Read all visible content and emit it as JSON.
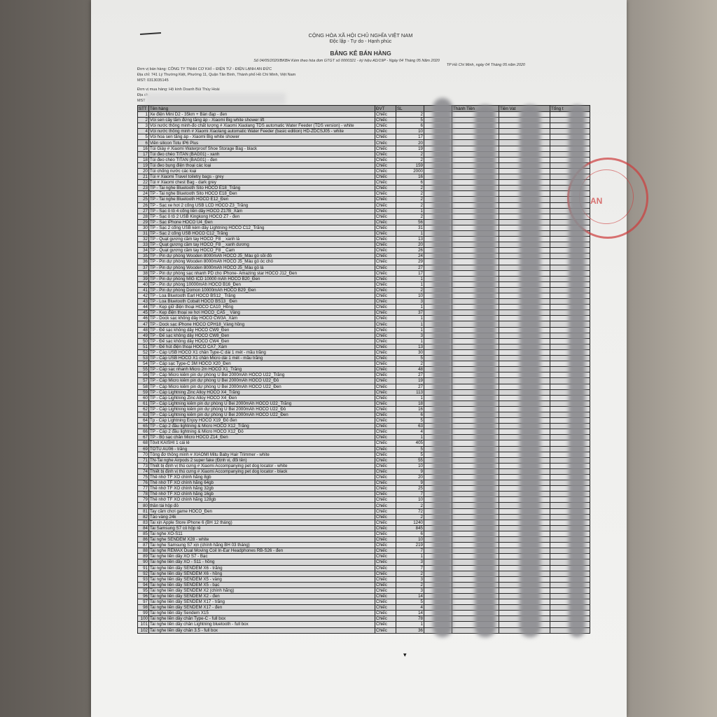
{
  "header": {
    "national_title": "CỘNG HÒA XÃ HỘI CHỦ NGHĨA VIỆT NAM",
    "motto": "Độc lập - Tự do - Hạnh phúc",
    "doc_title": "BẢNG KÊ BÁN HÀNG",
    "doc_ref": "Số  04/05/2020/BKBH Kèm theo hóa đơn GTGT số 0000321 - ký hiệu AD/19P -  Ngày 04 Tháng 05 Năm 2020",
    "place_date": "TP Hồ Chí Minh, ngày 04 Tháng 05 năm 2020"
  },
  "seller": {
    "name": "Đơn vị bán hàng: CÔNG TY TNHH CƠ KHÍ – ĐIỆN TỬ - ĐIỆN LẠNH AN ĐỨC",
    "address": "Địa chỉ: 741 Lý Thường Kiệt, Phường 11, Quận Tân Bình, Thành phố Hồ Chí Minh, Việt Nam",
    "tax_id": "MST: 0313035145"
  },
  "buyer": {
    "name": "Đơn vị mua hàng: Hộ kinh Doanh Bùi Thùy Hoài",
    "address_label": "Địa ch",
    "tax_label": "MST"
  },
  "stamp_text": "AN",
  "table": {
    "columns": [
      "STT",
      "Tên hàng",
      "ĐVT",
      "SL",
      "",
      "Thành Tiền",
      "Tiền Vat",
      "Tổng t"
    ],
    "rows": [
      [
        "1",
        "Xe điện Mini D2 - 35km + Bàn đạp - đen",
        "Chiếc",
        "2"
      ],
      [
        "2",
        "Vòi sen cây tắm đứng tăng áp - Xiaomi Big white shower lift",
        "Chiếc",
        "5"
      ],
      [
        "3",
        "Vòi nước thông minh-đo chất lượng # Xiaomi Xiaolang TDS automatic Water Feeder (TDS version) - white",
        "Chiếc",
        "6"
      ],
      [
        "4",
        "Vòi nước thông minh # Xiaomi Xiaolang automatic Water Feeder  (basic edition)  HD-ZDCSJ05 - white",
        "Chiếc",
        "10"
      ],
      [
        "5",
        "Vòi hoa sen tăng áp - Xiaomi Big white shower",
        "Chiếc",
        "17"
      ],
      [
        "6",
        "Viền silicon Totu IP6 Plus",
        "Chiếc",
        "20"
      ],
      [
        "16",
        "Túi Giày # Xiaomi Waterproof Shoe Storage Bag - black",
        "Chiếc",
        "19"
      ],
      [
        "17",
        "Túi đeo chéo TITAN (BAG01) - xanh",
        "Chiếc",
        "2"
      ],
      [
        "18",
        "Túi đeo chéo TITAN (BAG01) - đen",
        "Chiếc",
        "2"
      ],
      [
        "19",
        "Túi đeo bụng điện thoại các loại",
        "Chiếc",
        "159"
      ],
      [
        "20",
        "Túi chống nước các loại",
        "Chiếc",
        "2000"
      ],
      [
        "21",
        "Túi # Xiaomi Travel toiletry bags - grey",
        "Chiếc",
        "16"
      ],
      [
        "22",
        "Túi # Xiaomi chest Bag - dark grey",
        "Chiếc",
        "6"
      ],
      [
        "23",
        "TP - Tai nghe Bluetooth Sito HOCO E18_Trắng",
        "Chiếc",
        "2"
      ],
      [
        "24",
        "TP - Tai nghe Bluetooth Sito HOCO E18_Đen",
        "Chiếc",
        "2"
      ],
      [
        "25",
        "TP - Tai nghe Bluetooth HOCO E12_Đen",
        "Chiếc",
        "2"
      ],
      [
        "26",
        "TP - Sạc xe hơi 2 cổng  USB LCD HOCO Z3_Trắng",
        "Chiếc",
        "2"
      ],
      [
        "27",
        "TP - Sạc ô tô 4 cổng liền dây HOCO Z17B_Xám",
        "Chiếc",
        "1"
      ],
      [
        "28",
        "TP - Sạc ô tô 2 USB Kingkong HOCO Z7 - đen",
        "Chiếc",
        "2"
      ],
      [
        "29",
        "TP - Sạc iPhone HOCO U4_Đen",
        "Chiếc",
        "56"
      ],
      [
        "30",
        "TP - Sạc 2 cổng USB kèm dây Lightning HOCO C12_Trắng",
        "Chiếc",
        "31"
      ],
      [
        "31",
        "TP - Sạc 2 cổng USB HOCO C12_Trắng",
        "Chiếc",
        "1"
      ],
      [
        "32",
        "TP - Quạt gương cầm tay HOCO_F8 _ xanh lá",
        "Chiếc",
        "13"
      ],
      [
        "33",
        "TP - Quạt gương cầm tay HOCO_F8 _ xanh dương",
        "Chiếc",
        "20"
      ],
      [
        "34",
        "TP - Quạt gương cầm tay HOCO_F8 _ Cam",
        "Chiếc",
        "26"
      ],
      [
        "35",
        "TP - Pin dự phòng Wooden 8000mAh HOCO J5_Màu gỗ sồi đỏ",
        "Chiếc",
        "24"
      ],
      [
        "36",
        "TP - Pin dự phòng Wooden 8000mAh HOCO J5_Màu gỗ óc chó",
        "Chiếc",
        "29"
      ],
      [
        "37",
        "TP - Pin dự phòng Wooden 8000mAh HOCO J5_Màu gỗ lá",
        "Chiếc",
        "27"
      ],
      [
        "38",
        "TP - Pin dự phòng sạc nhanh PD cho iPhone- Amazing star HOCO  J12_Đen",
        "Chiếc",
        "17"
      ],
      [
        "39",
        "TP - Pin dự phòng MIG ICD 10000 mAh HOCO B20_Đen",
        "Chiếc",
        "1"
      ],
      [
        "40",
        "TP - Pin dự phòng 10000mAh HOCO B16_Đen",
        "Chiếc",
        "1"
      ],
      [
        "41",
        "TP - Pin dự phòng  Domon 10000mAh HOCO B29_Đen",
        "Chiếc",
        "2"
      ],
      [
        "42",
        "TP - Loa Bluetooth Earl HOCO BS12_ Trắng",
        "Chiếc",
        "10"
      ],
      [
        "43",
        "TP - Loa Bluetooth Cobalt HOCO BS13_ Đen",
        "Chiếc",
        "3"
      ],
      [
        "44",
        "TP - Kẹp giữ điện thoại HOCO CA10_Hồng",
        "Chiếc",
        "1"
      ],
      [
        "45",
        "TP - Kẹp điện thoại xe hơi HOCO_CA5 _ Vàng",
        "Chiếc",
        "37"
      ],
      [
        "46",
        "TP - Dock sạc không dây HOCO CW3A_Xám",
        "Chiếc",
        "1"
      ],
      [
        "47",
        "TP - Dock sạc iPhone HOCO CPH18_Vàng hồng",
        "Chiếc",
        "1"
      ],
      [
        "48",
        "TP - Đế sạc không dây HOCO CW9_Đen",
        "Chiếc",
        "1"
      ],
      [
        "49",
        "TP - Đế sạc không dây HOCO CW8_Đen",
        "Chiếc",
        "3"
      ],
      [
        "50",
        "TP - Đế sạc không dây HOCO CW4_Đen",
        "Chiếc",
        "1"
      ],
      [
        "51",
        "TP - Đế hút điện thoại HOCO CA7_Xám",
        "Chiếc",
        "13"
      ],
      [
        "52",
        "TP - Cáp USB HOCO X1 chân Type-C dài 1 mét - mầu trắng",
        "Chiếc",
        "30"
      ],
      [
        "53",
        "TP - Cáp USB HOCO X1 chân Micro dài 1 mét - mầu trắng",
        "Chiếc",
        "5"
      ],
      [
        "54",
        "TP - Cáp sạc Type-C 3M HOCO X20_Đen",
        "Chiếc",
        "2"
      ],
      [
        "55",
        "TP - Cáp sạc nhanh Micro 2m HOCO X1_Trắng",
        "Chiếc",
        "48"
      ],
      [
        "56",
        "TP - Cáp Micro kiêm pin dự phòng U Bei 2000mAh HOCO U22_Trắng",
        "Chiếc",
        "27"
      ],
      [
        "57",
        "TP - Cáp Micro kiêm pin dự phòng U Bei 2000mAh HOCO U22_Đỏ",
        "Chiếc",
        "19"
      ],
      [
        "58",
        "TP - Cáp Micro kiêm pin dự phòng U Bei 2000mAh HOCO U22_Đen",
        "Chiếc",
        "27"
      ],
      [
        "59",
        "TP - Cáp Lightning Zinc Alloy HOCO X4_Trắng",
        "Chiếc",
        "113"
      ],
      [
        "60",
        "TP - Cáp Lightning Zinc Alloy HOCO X4_Đen",
        "Chiếc",
        "1"
      ],
      [
        "61",
        "TP - Cáp Lightning kiêm pin dự phòng U Bei 2000mAh HOCO U22_Trắng",
        "Chiếc",
        "18"
      ],
      [
        "62",
        "TP - Cáp Lightning kiêm pin dự phòng U Bei 2000mAh HOCO U22_Đỏ",
        "Chiếc",
        "16"
      ],
      [
        "63",
        "TP - Cáp Lightning kiêm pin  dự phòng U Bei 2000mAh HOCO U22_Đen",
        "Chiếc",
        "6"
      ],
      [
        "64",
        "Tp - Cáp Lightning Enjoy HOCO X19_Đỏ đen",
        "Chiếc",
        "5"
      ],
      [
        "65",
        "TP - Cáp 2 đầu lightning & Micro HOCO X12_Trắng",
        "Chiếc",
        "63"
      ],
      [
        "66",
        "TP - Cáp 2 đầu lightning & Micro HOCO X12_Đỏ",
        "Chiếc",
        "4"
      ],
      [
        "67",
        "TP - Bộ sạc chân Micro HOCO Z14_Đen",
        "Chiếc",
        "1"
      ],
      [
        "68",
        "Tôvit KAISHI 1 cái lẻ",
        "Chiếc",
        "405"
      ],
      [
        "69",
        "TOTU AU06 - trắng",
        "Chiếc",
        "5"
      ],
      [
        "70",
        "Tông đơ thông minh # XIAOMI Mitu Baby Hair Trimmer - white",
        "Chiếc",
        "5"
      ],
      [
        "71",
        "TN-Tai nghe Airpods 2  super fake (Định vị, đổi tên)",
        "Chiếc",
        "55"
      ],
      [
        "73",
        "Thiết bị định vị thú cưng # Xiaomi Accompanying pet dog locator - white",
        "Chiếc",
        "10"
      ],
      [
        "74",
        "Thiết bị định vị thú cưng # Xiaomi Accompanying pet dog locator - black",
        "Chiếc",
        "9"
      ],
      [
        "75",
        "Thẻ nhớ TF XO chính hãng 8gb",
        "Chiếc",
        "20"
      ],
      [
        "76",
        "Thẻ nhớ TF XO chính hãng 64gb",
        "Chiếc",
        "9"
      ],
      [
        "77",
        "Thẻ nhớ TF XO chính hãng 32gb",
        "Chiếc",
        "25"
      ],
      [
        "78",
        "Thẻ nhớ TF XO chính hãng 16gb",
        "Chiếc",
        "7"
      ],
      [
        "79",
        "Thẻ nhớ TF XO chính hãng 128gb",
        "Chiếc",
        "10"
      ],
      [
        "80",
        "thần tài hộp đỏ",
        "Chiếc",
        "2"
      ],
      [
        "81",
        "Tay cầm chơi game HOCO_Đen",
        "Chiếc",
        "72"
      ],
      [
        "82",
        "Táo vàng 24k",
        "Chiếc",
        "2"
      ],
      [
        "83",
        "Tai xịn Apple Store iPhone 6 (BH 12  tháng)",
        "Chiếc",
        "1240"
      ],
      [
        "84",
        "Tai Samsung S7 có hộp rẻ",
        "Chiếc",
        "845"
      ],
      [
        "85",
        "Tai nghe XO-S11",
        "Chiếc",
        "6"
      ],
      [
        "86",
        "Tai nghe SENDEM X28 - white",
        "Chiếc",
        "10"
      ],
      [
        "87",
        "Tai nghe Samsung S7 xịn (chính hãng BH 03 tháng)",
        "Chiếc",
        "219"
      ],
      [
        "88",
        "Tai nghe REMAX Dual Moving Coil In-Ear Headphones RB-S26 - đen",
        "Chiếc",
        "7"
      ],
      [
        "89",
        "Tai nghe liền dây XO S7 - Bạc",
        "Chiếc",
        "1"
      ],
      [
        "90",
        "Tai nghe liền dây XO - S11 - hồng",
        "Chiếc",
        "3"
      ],
      [
        "91",
        "Tai nghe liền dây SENDEM X6 - trắng",
        "Chiếc",
        "7"
      ],
      [
        "92",
        "Tai nghe liền dây SENDEM X6 - hồng",
        "Chiếc",
        "2"
      ],
      [
        "93",
        "Tai nghe liền dây SENDEM X5 - vàng",
        "Chiếc",
        "3"
      ],
      [
        "94",
        "Tai nghe liền dây SENDEM X5 - bạc",
        "Chiếc",
        "2"
      ],
      [
        "95",
        "Tai nghe liền dây SENDEM X2 (chính hãng)",
        "Chiếc",
        "3"
      ],
      [
        "96",
        "Tai nghe liền dây SENDEM X2 - đen",
        "Chiếc",
        "14"
      ],
      [
        "97",
        "Tai nghe liền dây SENDEM X17 - trắng",
        "Chiếc",
        "5"
      ],
      [
        "98",
        "Tai nghe liền dây SENDEM X17 - đen",
        "Chiếc",
        "4"
      ],
      [
        "99",
        "Tai nghe liền dây Sendem X15",
        "Chiếc",
        "14"
      ],
      [
        "100",
        "Tai nghe liền dây chân Type-C - full box",
        "Chiếc",
        "78"
      ],
      [
        "101",
        "Tai nghe liền dây chân Lightning bluetooth - full box",
        "Chiếc",
        "1"
      ],
      [
        "102",
        "Tai nghe liền dây chân 3.5 - full box",
        "Chiếc",
        "36"
      ]
    ]
  }
}
